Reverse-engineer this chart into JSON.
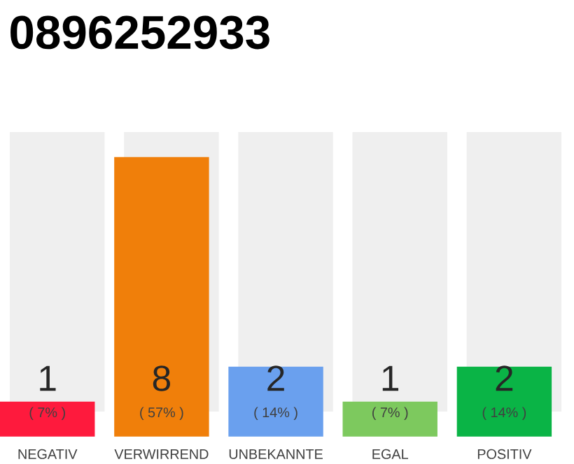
{
  "chart_data": {
    "type": "bar",
    "title": "0896252933",
    "categories": [
      "NEGATIV",
      "VERWIRREND",
      "UNBEKANNTE",
      "EGAL",
      "POSITIV"
    ],
    "values": [
      1,
      8,
      2,
      1,
      2
    ],
    "colors": [
      "#fe1a3d",
      "#f07f0a",
      "#6aa0ee",
      "#7dc95e",
      "#0ab446"
    ],
    "data_labels": true,
    "annotations": [
      "( 7% )",
      "( 57% )",
      "( 14% )",
      "( 7% )",
      "( 14% )"
    ]
  }
}
